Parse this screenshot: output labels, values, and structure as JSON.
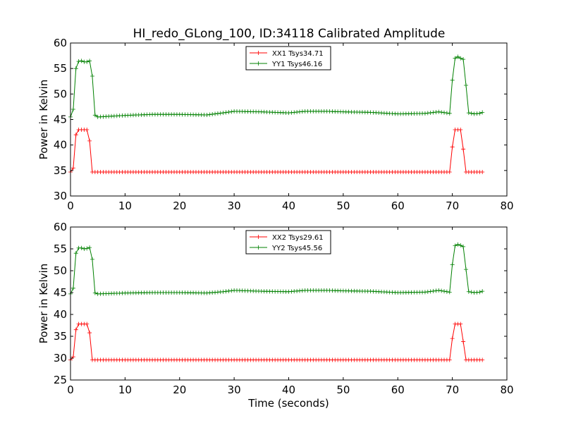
{
  "figure": {
    "title": "HI_redo_GLong_100, ID:34118 Calibrated Amplitude",
    "colors": {
      "xx": "#ff0000",
      "yy": "#008000"
    }
  },
  "chart_data": [
    {
      "type": "line",
      "ylabel": "Power in Kelvin",
      "xlabel": "",
      "xlim": [
        0,
        80
      ],
      "ylim": [
        30,
        60
      ],
      "xticks": [
        0,
        10,
        20,
        30,
        40,
        50,
        60,
        70,
        80
      ],
      "yticks": [
        30,
        35,
        40,
        45,
        50,
        55,
        60
      ],
      "legend": "top-center",
      "grid": false,
      "marker": "+",
      "series": [
        {
          "name": "XX1 Tsys34.71",
          "color": "#ff0000",
          "points": [
            [
              0.0,
              34.7
            ],
            [
              0.5,
              35.5
            ],
            [
              1.0,
              42.0
            ],
            [
              1.5,
              43.0
            ],
            [
              2.0,
              43.0
            ],
            [
              2.5,
              43.0
            ],
            [
              3.0,
              43.0
            ],
            [
              3.5,
              40.8
            ],
            [
              4.0,
              34.7
            ],
            [
              69.5,
              34.7
            ],
            [
              70.0,
              39.6
            ],
            [
              70.5,
              43.0
            ],
            [
              71.0,
              43.0
            ],
            [
              71.5,
              43.0
            ],
            [
              72.0,
              39.2
            ],
            [
              72.5,
              34.7
            ],
            [
              75.5,
              34.7
            ]
          ],
          "baseline_pattern": {
            "from": 4.0,
            "to": 69.5,
            "step": 0.5,
            "value": 34.7,
            "variation": [
              [
                25.5,
                34.7
              ],
              [
                26.5,
                34.5
              ],
              [
                29.0,
                34.6
              ],
              [
                30.0,
                34.8
              ],
              [
                35.0,
                34.7
              ],
              [
                69.5,
                34.7
              ]
            ]
          }
        },
        {
          "name": "YY1 Tsys46.16",
          "color": "#008000",
          "points": [
            [
              0.0,
              45.5
            ],
            [
              0.5,
              47.0
            ],
            [
              1.0,
              55.0
            ],
            [
              1.5,
              56.4
            ],
            [
              2.0,
              56.5
            ],
            [
              2.5,
              56.3
            ],
            [
              3.0,
              56.3
            ],
            [
              3.5,
              56.5
            ],
            [
              4.0,
              53.5
            ],
            [
              4.3,
              46.0
            ],
            [
              5.0,
              45.5
            ],
            [
              10.0,
              45.8
            ],
            [
              15.0,
              46.0
            ],
            [
              20.0,
              46.0
            ],
            [
              25.0,
              45.9
            ],
            [
              28.0,
              46.3
            ],
            [
              30.0,
              46.6
            ],
            [
              35.0,
              46.5
            ],
            [
              40.0,
              46.3
            ],
            [
              43.0,
              46.6
            ],
            [
              47.0,
              46.6
            ],
            [
              50.0,
              46.5
            ],
            [
              55.0,
              46.4
            ],
            [
              60.0,
              46.1
            ],
            [
              65.0,
              46.2
            ],
            [
              67.5,
              46.5
            ],
            [
              69.5,
              46.2
            ],
            [
              70.0,
              52.7
            ],
            [
              70.5,
              57.0
            ],
            [
              71.0,
              57.3
            ],
            [
              71.5,
              57.0
            ],
            [
              72.0,
              56.8
            ],
            [
              72.5,
              51.7
            ],
            [
              73.0,
              46.3
            ],
            [
              74.0,
              46.1
            ],
            [
              75.0,
              46.2
            ],
            [
              75.5,
              46.4
            ]
          ]
        }
      ]
    },
    {
      "type": "line",
      "ylabel": "Power in Kelvin",
      "xlabel": "Time (seconds)",
      "xlim": [
        0,
        80
      ],
      "ylim": [
        25,
        60
      ],
      "xticks": [
        0,
        10,
        20,
        30,
        40,
        50,
        60,
        70,
        80
      ],
      "yticks": [
        25,
        30,
        35,
        40,
        45,
        50,
        55,
        60
      ],
      "legend": "top-center",
      "grid": false,
      "marker": "+",
      "series": [
        {
          "name": "XX2 Tsys29.61",
          "color": "#ff0000",
          "points": [
            [
              0.0,
              29.6
            ],
            [
              0.5,
              30.3
            ],
            [
              1.0,
              36.5
            ],
            [
              1.5,
              37.8
            ],
            [
              2.0,
              37.8
            ],
            [
              2.5,
              37.8
            ],
            [
              3.0,
              37.8
            ],
            [
              3.5,
              35.8
            ],
            [
              4.0,
              29.6
            ],
            [
              69.5,
              29.6
            ],
            [
              70.0,
              34.5
            ],
            [
              70.5,
              37.8
            ],
            [
              71.0,
              37.8
            ],
            [
              71.5,
              37.8
            ],
            [
              72.0,
              33.8
            ],
            [
              72.5,
              29.6
            ],
            [
              75.5,
              29.6
            ]
          ]
        },
        {
          "name": "YY2 Tsys45.56",
          "color": "#008000",
          "points": [
            [
              0.0,
              44.7
            ],
            [
              0.5,
              46.0
            ],
            [
              1.0,
              54.0
            ],
            [
              1.5,
              55.2
            ],
            [
              2.0,
              55.2
            ],
            [
              2.5,
              55.0
            ],
            [
              3.0,
              55.1
            ],
            [
              3.5,
              55.3
            ],
            [
              4.0,
              52.6
            ],
            [
              4.3,
              45.0
            ],
            [
              5.0,
              44.7
            ],
            [
              10.0,
              44.9
            ],
            [
              15.0,
              45.0
            ],
            [
              20.0,
              45.0
            ],
            [
              25.0,
              44.9
            ],
            [
              28.0,
              45.2
            ],
            [
              30.0,
              45.5
            ],
            [
              35.0,
              45.3
            ],
            [
              40.0,
              45.2
            ],
            [
              43.0,
              45.5
            ],
            [
              47.0,
              45.5
            ],
            [
              50.0,
              45.4
            ],
            [
              55.0,
              45.3
            ],
            [
              60.0,
              45.0
            ],
            [
              65.0,
              45.1
            ],
            [
              67.5,
              45.5
            ],
            [
              69.5,
              45.1
            ],
            [
              70.0,
              51.4
            ],
            [
              70.5,
              55.7
            ],
            [
              71.0,
              56.0
            ],
            [
              71.5,
              55.8
            ],
            [
              72.0,
              55.5
            ],
            [
              72.5,
              50.3
            ],
            [
              73.0,
              45.2
            ],
            [
              74.0,
              45.0
            ],
            [
              75.0,
              45.1
            ],
            [
              75.5,
              45.3
            ]
          ]
        }
      ]
    }
  ]
}
